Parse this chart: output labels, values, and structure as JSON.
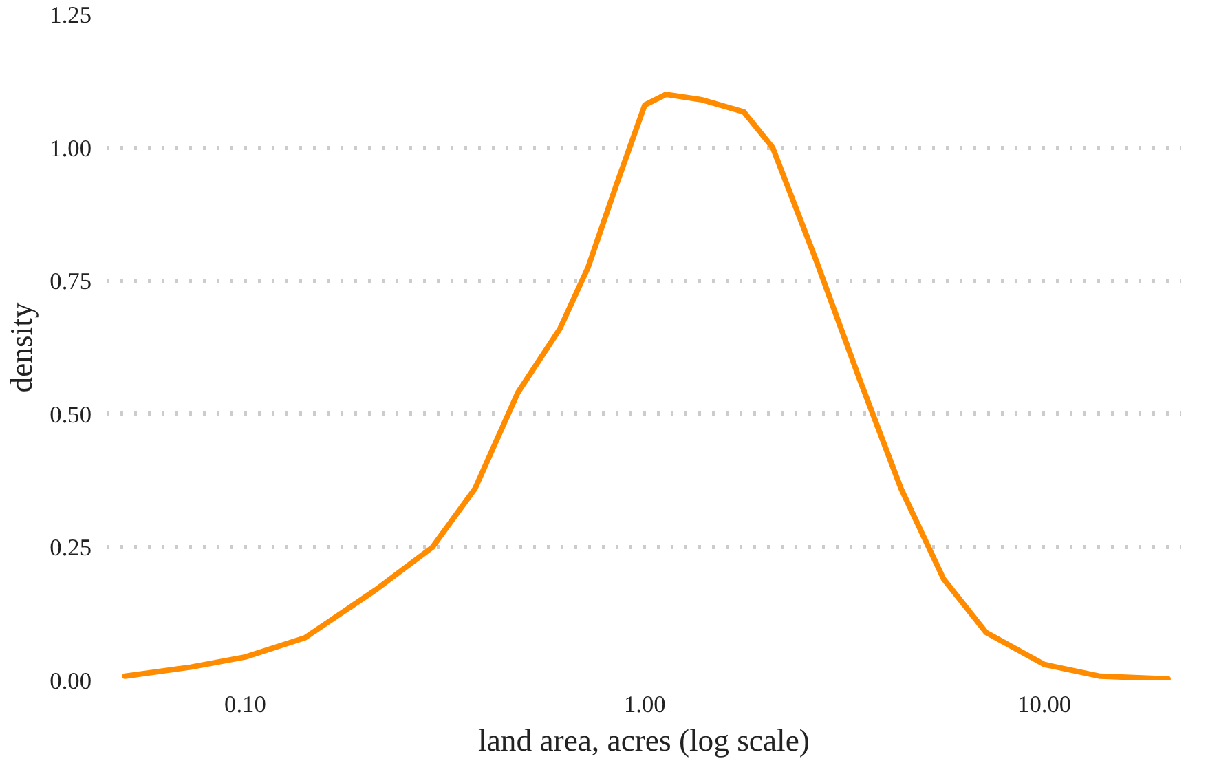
{
  "chart_data": {
    "type": "line",
    "xlabel": "land area, acres (log scale)",
    "ylabel": "density",
    "log": "x",
    "grid": "y",
    "line_style": "solid",
    "marker": "none",
    "xlim": [
      0.045,
      22
    ],
    "ylim": [
      0,
      1.25
    ],
    "xticks": [
      {
        "value": 0.1,
        "label": "0.10"
      },
      {
        "value": 1,
        "label": "1.00"
      },
      {
        "value": 10,
        "label": "10.00"
      }
    ],
    "yticks": [
      {
        "value": 0,
        "label": "0.00"
      },
      {
        "value": 0.25,
        "label": "0.25"
      },
      {
        "value": 0.5,
        "label": "0.50"
      },
      {
        "value": 0.75,
        "label": "0.75"
      },
      {
        "value": 1,
        "label": "1.00"
      },
      {
        "value": 1.25,
        "label": "1.25"
      }
    ],
    "x": [
      0.05,
      0.073,
      0.1,
      0.141,
      0.212,
      0.294,
      0.376,
      0.481,
      0.613,
      0.721,
      0.849,
      1.0,
      1.13,
      1.387,
      1.77,
      2.09,
      2.68,
      3.43,
      4.38,
      5.6,
      7.15,
      10,
      13.8,
      20.4
    ],
    "series": [
      {
        "color": "#ff8c00",
        "values": [
          0.008,
          0.025,
          0.044,
          0.08,
          0.17,
          0.25,
          0.36,
          0.54,
          0.66,
          0.775,
          0.93,
          1.08,
          1.1,
          1.09,
          1.067,
          1.0,
          0.79,
          0.57,
          0.36,
          0.19,
          0.09,
          0.03,
          0.008,
          0.003
        ]
      }
    ]
  }
}
